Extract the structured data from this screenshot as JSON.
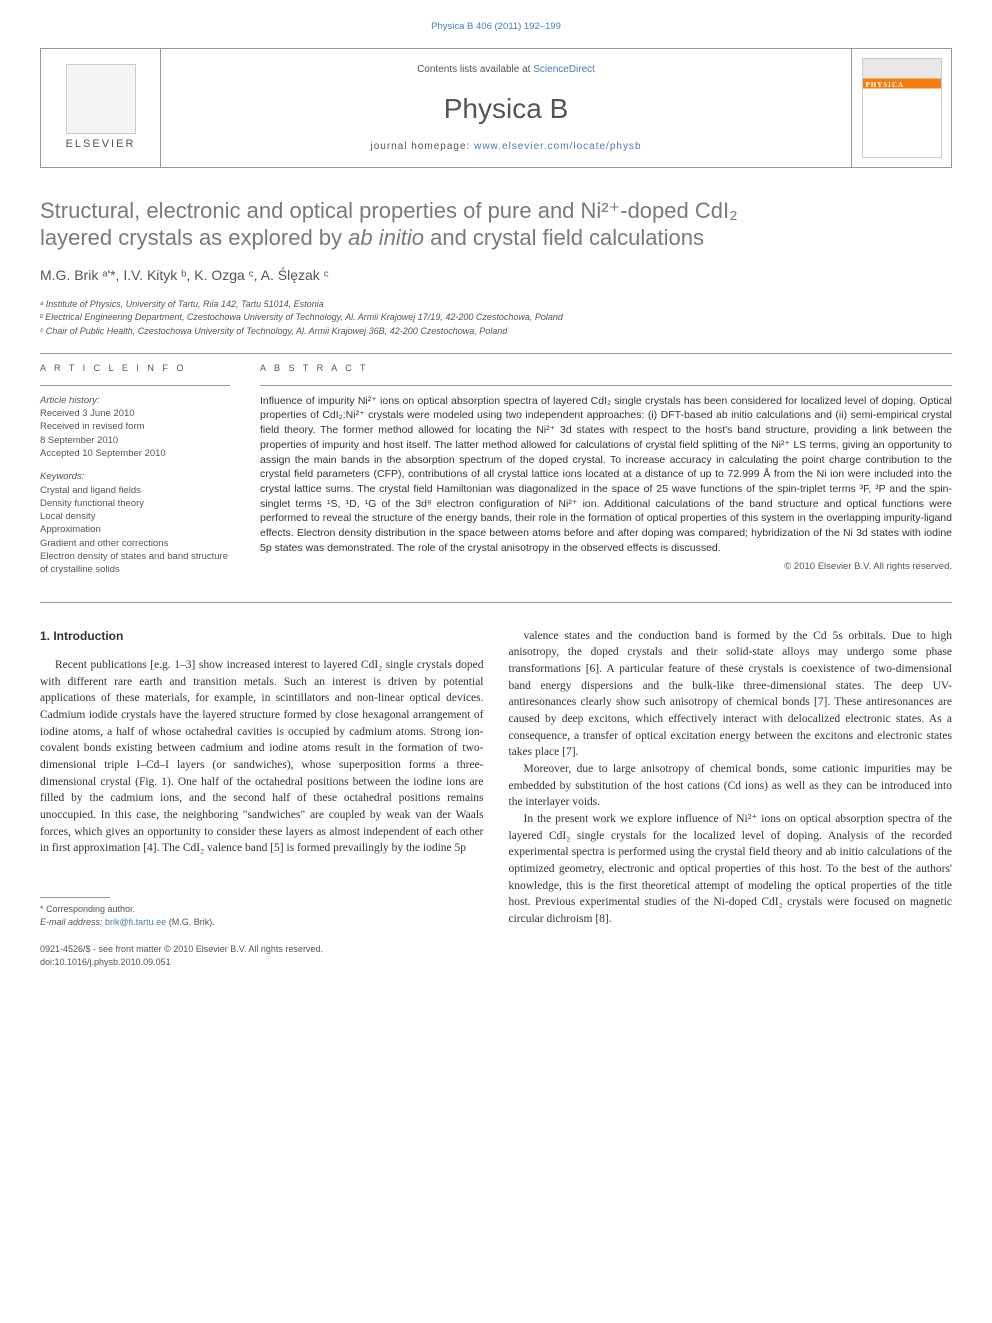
{
  "top_citation": "Physica B 406 (2011) 192–199",
  "header": {
    "publisher": "ELSEVIER",
    "contents_text": "Contents lists available at ",
    "contents_link": "ScienceDirect",
    "journal_name": "Physica B",
    "homepage_label": "journal homepage: ",
    "homepage_url": "www.elsevier.com/locate/physb",
    "cover_label": "PHYSICA"
  },
  "title_line1": "Structural, electronic and optical properties of pure and Ni²⁺-doped CdI₂",
  "title_line2": "layered crystals as explored by ",
  "title_italic": "ab initio",
  "title_line2b": " and crystal field calculations",
  "authors": "M.G. Brik ᵃ'*, I.V. Kityk ᵇ, K. Ozga ᶜ, A. Ślęzak ᶜ",
  "affiliations": {
    "a": "ᵃ Institute of Physics, University of Tartu, Riia 142, Tartu 51014, Estonia",
    "b": "ᵇ Electrical Engineering Department, Czestochowa University of Technology, Al. Armii Krajowej 17/19, 42-200 Czestochowa, Poland",
    "c": "ᶜ Chair of Public Health, Czestochowa University of Technology, Al. Armii Krajowej 36B, 42-200 Czestochowa, Poland"
  },
  "article_info": {
    "header": "A R T I C L E  I N F O",
    "history_label": "Article history:",
    "received": "Received 3 June 2010",
    "revised": "Received in revised form",
    "revised_date": "8 September 2010",
    "accepted": "Accepted 10 September 2010",
    "keywords_label": "Keywords:",
    "keywords": [
      "Crystal and ligand fields",
      "Density functional theory",
      "Local density",
      "Approximation",
      "Gradient and other corrections",
      "Electron density of states and band structure of crystalline solids"
    ]
  },
  "abstract": {
    "header": "A B S T R A C T",
    "text": "Influence of impurity Ni²⁺ ions on optical absorption spectra of layered CdI₂ single crystals has been considered for localized level of doping. Optical properties of CdI₂:Ni²⁺ crystals were modeled using two independent approaches: (i) DFT-based ab initio calculations and (ii) semi-empirical crystal field theory. The former method allowed for locating the Ni²⁺ 3d states with respect to the host's band structure, providing a link between the properties of impurity and host itself. The latter method allowed for calculations of crystal field splitting of the Ni²⁺ LS terms, giving an opportunity to assign the main bands in the absorption spectrum of the doped crystal. To increase accuracy in calculating the point charge contribution to the crystal field parameters (CFP), contributions of all crystal lattice ions located at a distance of up to 72.999 Å from the Ni ion were included into the crystal lattice sums. The crystal field Hamiltonian was diagonalized in the space of 25 wave functions of the spin-triplet terms ³F, ³P and the spin-singlet terms ¹S, ¹D, ¹G of the 3d⁸ electron configuration of Ni²⁺ ion. Additional calculations of the band structure and optical functions were performed to reveal the structure of the energy bands, their role in the formation of optical properties of this system in the overlapping impurity-ligand effects. Electron density distribution in the space between atoms before and after doping was compared; hybridization of the Ni 3d states with iodine 5p states was demonstrated. The role of the crystal anisotropy in the observed effects is discussed.",
    "copyright": "© 2010 Elsevier B.V. All rights reserved."
  },
  "intro": {
    "heading": "1. Introduction",
    "col1_para": "Recent publications [e.g. 1–3] show increased interest to layered CdI₂ single crystals doped with different rare earth and transition metals. Such an interest is driven by potential applications of these materials, for example, in scintillators and non-linear optical devices. Cadmium iodide crystals have the layered structure formed by close hexagonal arrangement of iodine atoms, a half of whose octahedral cavities is occupied by cadmium atoms. Strong ion-covalent bonds existing between cadmium and iodine atoms result in the formation of two-dimensional triple I–Cd–I layers (or sandwiches), whose superposition forms a three-dimensional crystal (Fig. 1). One half of the octahedral positions between the iodine ions are filled by the cadmium ions, and the second half of these octahedral positions remains unoccupied. In this case, the neighboring \"sandwiches\" are coupled by weak van der Waals forces, which gives an opportunity to consider these layers as almost independent of each other in first approximation [4]. The CdI₂ valence band [5] is formed prevailingly by the iodine 5p",
    "col2_para1": "valence states and the conduction band is formed by the Cd 5s orbitals. Due to high anisotropy, the doped crystals and their solid-state alloys may undergo some phase transformations [6]. A particular feature of these crystals is coexistence of two-dimensional band energy dispersions and the bulk-like three-dimensional states. The deep UV-antiresonances clearly show such anisotropy of chemical bonds [7]. These antiresonances are caused by deep excitons, which effectively interact with delocalized electronic states. As a consequence, a transfer of optical excitation energy between the excitons and electronic states takes place [7].",
    "col2_para2": "Moreover, due to large anisotropy of chemical bonds, some cationic impurities may be embedded by substitution of the host cations (Cd ions) as well as they can be introduced into the interlayer voids.",
    "col2_para3": "In the present work we explore influence of Ni²⁺ ions on optical absorption spectra of the layered CdI₂ single crystals for the localized level of doping. Analysis of the recorded experimental spectra is performed using the crystal field theory and ab initio calculations of the optimized geometry, electronic and optical properties of this host. To the best of the authors' knowledge, this is the first theoretical attempt of modeling the optical properties of the title host. Previous experimental studies of the Ni-doped CdI₂ crystals were focused on magnetic circular dichroism [8]."
  },
  "footnote": {
    "corr": "* Corresponding author.",
    "email_label": "E-mail address: ",
    "email": "brik@fi.tartu.ee",
    "email_name": " (M.G. Brik)."
  },
  "doi": {
    "issn": "0921-4526/$ - see front matter © 2010 Elsevier B.V. All rights reserved.",
    "doi": "doi:10.1016/j.physb.2010.09.051"
  }
}
